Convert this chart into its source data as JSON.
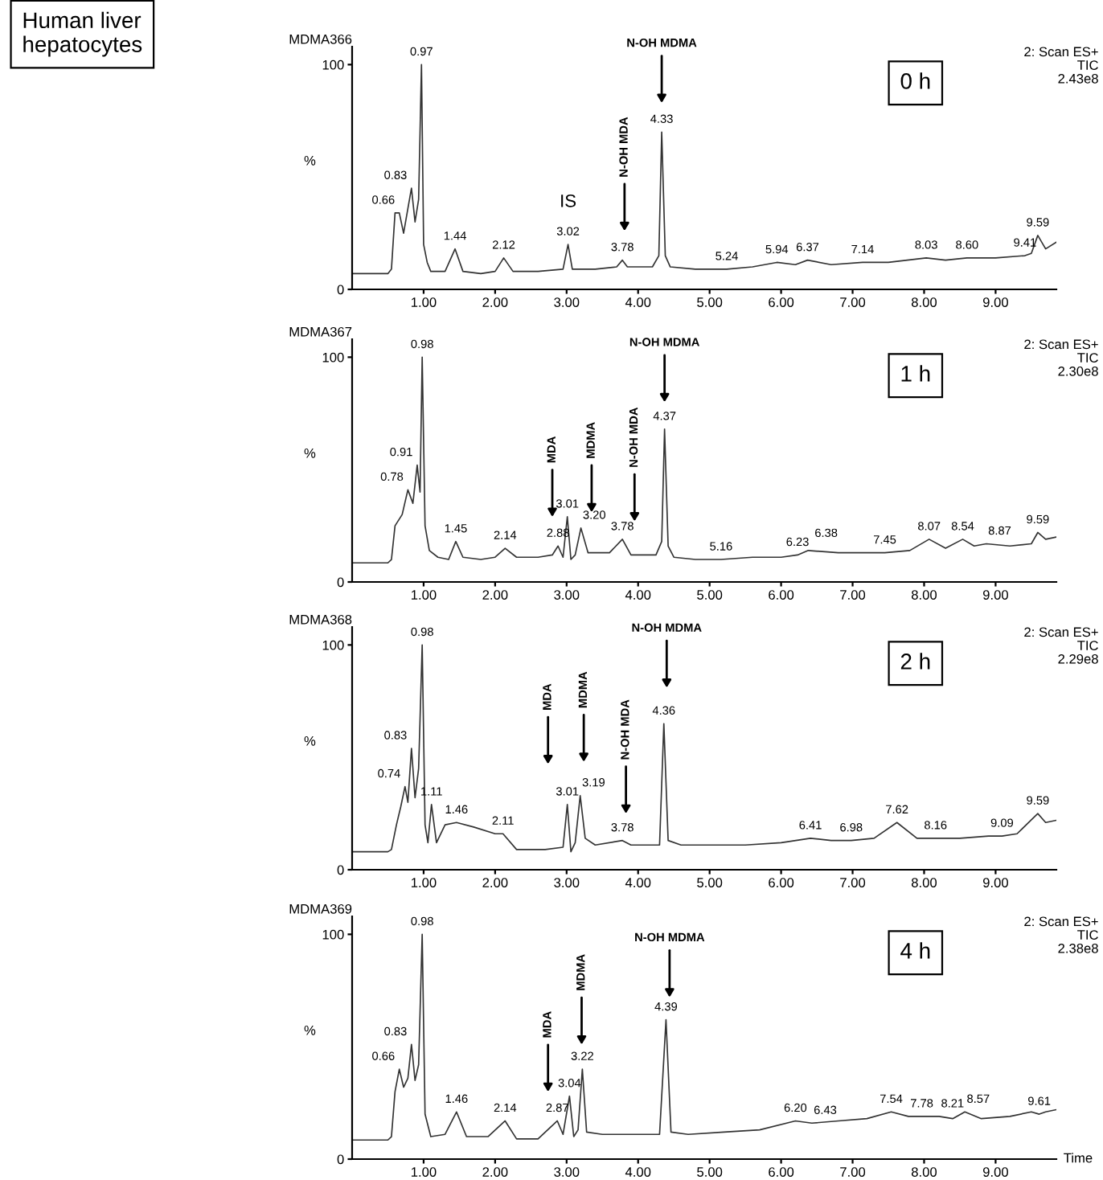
{
  "chart_data": [
    {
      "type": "line",
      "title": "MDMA366",
      "subtitle": "2: Scan ES+\nTIC\n2.43e8",
      "ylabel": "%",
      "color": "#333333",
      "xlim": [
        0,
        9.85
      ],
      "ylim": [
        0,
        108
      ],
      "yticks": [
        0,
        100
      ],
      "xticks": [
        {
          "value": 1,
          "label": "1.00"
        },
        {
          "value": 2,
          "label": "2.00"
        },
        {
          "value": 3,
          "label": "3.00"
        },
        {
          "value": 4,
          "label": "4.00"
        },
        {
          "value": 5,
          "label": "5.00"
        },
        {
          "value": 6,
          "label": "6.00"
        },
        {
          "value": 7,
          "label": "7.00"
        },
        {
          "value": 8,
          "label": "8.00"
        },
        {
          "value": 9,
          "label": "9.00"
        }
      ],
      "x": [
        0,
        0.5,
        0.55,
        0.6,
        0.66,
        0.72,
        0.78,
        0.83,
        0.88,
        0.93,
        0.97,
        1.0,
        1.05,
        1.1,
        1.3,
        1.44,
        1.55,
        1.8,
        2.0,
        2.12,
        2.25,
        2.6,
        2.95,
        3.02,
        3.08,
        3.4,
        3.7,
        3.78,
        3.85,
        4.2,
        4.29,
        4.33,
        4.38,
        4.45,
        4.8,
        5.24,
        5.6,
        5.94,
        6.2,
        6.37,
        6.7,
        7.14,
        7.5,
        8.03,
        8.3,
        8.6,
        9.0,
        9.41,
        9.5,
        9.59,
        9.7,
        9.85
      ],
      "values": [
        7,
        7,
        9,
        34,
        34,
        25,
        36,
        45,
        30,
        40,
        100,
        20,
        12,
        8,
        8,
        18,
        8,
        7,
        8,
        14,
        8,
        8,
        9,
        20,
        9,
        9,
        10,
        13,
        10,
        10,
        15,
        70,
        15,
        10,
        9,
        9,
        10,
        12,
        11,
        13,
        11,
        12,
        12,
        14,
        13,
        14,
        14,
        15,
        16,
        24,
        18,
        21
      ],
      "annotations": [
        "0 h",
        "Human liver\nhepatocytes",
        "IS",
        "N-OH MDA",
        "N-OH MDMA",
        {
          "text": "0.66",
          "x": 0.66,
          "y": 34
        },
        {
          "text": "0.83",
          "x": 0.83,
          "y": 45
        },
        {
          "text": "0.97",
          "x": 0.97,
          "y": 100
        },
        {
          "text": "1.44",
          "x": 1.44,
          "y": 18
        },
        {
          "text": "2.12",
          "x": 2.12,
          "y": 14
        },
        {
          "text": "3.02",
          "x": 3.02,
          "y": 20
        },
        {
          "text": "3.78",
          "x": 3.78,
          "y": 13
        },
        {
          "text": "4.33",
          "x": 4.33,
          "y": 70
        },
        {
          "text": "5.24",
          "x": 5.24,
          "y": 9
        },
        {
          "text": "5.94",
          "x": 5.94,
          "y": 12
        },
        {
          "text": "6.37",
          "x": 6.37,
          "y": 13
        },
        {
          "text": "7.14",
          "x": 7.14,
          "y": 12
        },
        {
          "text": "8.03",
          "x": 8.03,
          "y": 14
        },
        {
          "text": "8.60",
          "x": 8.6,
          "y": 14
        },
        {
          "text": "9.41",
          "x": 9.41,
          "y": 15
        },
        {
          "text": "9.59",
          "x": 9.59,
          "y": 24
        }
      ]
    },
    {
      "type": "line",
      "title": "MDMA367",
      "subtitle": "2: Scan ES+\nTIC\n2.30e8",
      "ylabel": "%",
      "color": "#333333",
      "xlim": [
        0,
        9.85
      ],
      "ylim": [
        0,
        108
      ],
      "yticks": [
        0,
        100
      ],
      "xticks": [
        {
          "value": 1,
          "label": "1.00"
        },
        {
          "value": 2,
          "label": "2.00"
        },
        {
          "value": 3,
          "label": "3.00"
        },
        {
          "value": 4,
          "label": "4.00"
        },
        {
          "value": 5,
          "label": "5.00"
        },
        {
          "value": 6,
          "label": "6.00"
        },
        {
          "value": 7,
          "label": "7.00"
        },
        {
          "value": 8,
          "label": "8.00"
        },
        {
          "value": 9,
          "label": "9.00"
        }
      ],
      "x": [
        0,
        0.5,
        0.55,
        0.6,
        0.7,
        0.78,
        0.85,
        0.91,
        0.95,
        0.98,
        1.02,
        1.08,
        1.2,
        1.35,
        1.45,
        1.55,
        1.8,
        2.0,
        2.14,
        2.3,
        2.6,
        2.8,
        2.88,
        2.95,
        3.01,
        3.06,
        3.12,
        3.2,
        3.3,
        3.6,
        3.78,
        3.9,
        4.25,
        4.33,
        4.37,
        4.42,
        4.5,
        4.8,
        5.16,
        5.6,
        6.0,
        6.23,
        6.38,
        6.8,
        7.2,
        7.45,
        7.8,
        8.07,
        8.3,
        8.54,
        8.7,
        8.87,
        9.2,
        9.5,
        9.59,
        9.7,
        9.85
      ],
      "values": [
        8.5,
        8.5,
        10,
        25,
        30,
        41,
        35,
        52,
        40,
        100,
        25,
        14,
        11,
        10,
        18,
        11,
        10,
        11,
        15,
        11,
        11,
        12,
        16,
        11,
        29,
        10,
        12,
        24,
        13,
        13,
        19,
        12,
        12,
        18,
        68,
        16,
        11,
        10,
        10,
        11,
        11,
        12,
        14,
        13,
        13,
        13,
        14,
        19,
        15,
        19,
        16,
        17,
        16,
        17,
        22,
        19,
        20
      ],
      "annotations": [
        "1 h",
        "MDA",
        "MDMA",
        "N-OH MDA",
        "N-OH MDMA",
        {
          "text": "0.78",
          "x": 0.78,
          "y": 41
        },
        {
          "text": "0.91",
          "x": 0.91,
          "y": 52
        },
        {
          "text": "0.98",
          "x": 0.98,
          "y": 100
        },
        {
          "text": "1.45",
          "x": 1.45,
          "y": 18
        },
        {
          "text": "2.14",
          "x": 2.14,
          "y": 15
        },
        {
          "text": "2.88",
          "x": 2.88,
          "y": 16
        },
        {
          "text": "3.01",
          "x": 3.01,
          "y": 29
        },
        {
          "text": "3.20",
          "x": 3.2,
          "y": 24
        },
        {
          "text": "3.78",
          "x": 3.78,
          "y": 19
        },
        {
          "text": "4.37",
          "x": 4.37,
          "y": 68
        },
        {
          "text": "5.16",
          "x": 5.16,
          "y": 10
        },
        {
          "text": "6.23",
          "x": 6.23,
          "y": 12
        },
        {
          "text": "6.38",
          "x": 6.38,
          "y": 14
        },
        {
          "text": "7.45",
          "x": 7.45,
          "y": 13
        },
        {
          "text": "8.07",
          "x": 8.07,
          "y": 19
        },
        {
          "text": "8.54",
          "x": 8.54,
          "y": 19
        },
        {
          "text": "8.87",
          "x": 8.87,
          "y": 17
        },
        {
          "text": "9.59",
          "x": 9.59,
          "y": 22
        }
      ]
    },
    {
      "type": "line",
      "title": "MDMA368",
      "subtitle": "2: Scan ES+\nTIC\n2.29e8",
      "ylabel": "%",
      "color": "#333333",
      "xlim": [
        0,
        9.85
      ],
      "ylim": [
        0,
        108
      ],
      "yticks": [
        0,
        100
      ],
      "xticks": [
        {
          "value": 1,
          "label": "1.00"
        },
        {
          "value": 2,
          "label": "2.00"
        },
        {
          "value": 3,
          "label": "3.00"
        },
        {
          "value": 4,
          "label": "4.00"
        },
        {
          "value": 5,
          "label": "5.00"
        },
        {
          "value": 6,
          "label": "6.00"
        },
        {
          "value": 7,
          "label": "7.00"
        },
        {
          "value": 8,
          "label": "8.00"
        },
        {
          "value": 9,
          "label": "9.00"
        }
      ],
      "x": [
        0,
        0.5,
        0.55,
        0.62,
        0.68,
        0.74,
        0.78,
        0.83,
        0.88,
        0.93,
        0.98,
        1.02,
        1.06,
        1.11,
        1.18,
        1.3,
        1.46,
        1.7,
        2.0,
        2.11,
        2.3,
        2.7,
        2.95,
        3.01,
        3.06,
        3.12,
        3.19,
        3.26,
        3.4,
        3.78,
        3.9,
        4.3,
        4.36,
        4.42,
        4.6,
        5.0,
        5.5,
        6.0,
        6.41,
        6.7,
        6.98,
        7.3,
        7.62,
        7.9,
        8.16,
        8.5,
        8.9,
        9.09,
        9.3,
        9.59,
        9.7,
        9.85
      ],
      "values": [
        8,
        8,
        9,
        20,
        28,
        37,
        30,
        54,
        32,
        45,
        100,
        20,
        12,
        29,
        12,
        20,
        21,
        19,
        16,
        16,
        9,
        9,
        10,
        29,
        8,
        12,
        33,
        14,
        11,
        13,
        11,
        11,
        65,
        13,
        11,
        11,
        11,
        12,
        14,
        13,
        13,
        14,
        21,
        14,
        14,
        14,
        15,
        15,
        16,
        25,
        21,
        22
      ],
      "annotations": [
        "2 h",
        "MDA",
        "MDMA",
        "N-OH MDA",
        "N-OH MDMA",
        {
          "text": "0.74",
          "x": 0.74,
          "y": 37
        },
        {
          "text": "0.83",
          "x": 0.83,
          "y": 54
        },
        {
          "text": "0.98",
          "x": 0.98,
          "y": 100
        },
        {
          "text": "1.11",
          "x": 1.11,
          "y": 29
        },
        {
          "text": "1.46",
          "x": 1.46,
          "y": 21
        },
        {
          "text": "2.11",
          "x": 2.11,
          "y": 16
        },
        {
          "text": "3.01",
          "x": 3.01,
          "y": 29
        },
        {
          "text": "3.19",
          "x": 3.19,
          "y": 33
        },
        {
          "text": "3.78",
          "x": 3.78,
          "y": 13
        },
        {
          "text": "4.36",
          "x": 4.36,
          "y": 65
        },
        {
          "text": "6.41",
          "x": 6.41,
          "y": 14
        },
        {
          "text": "6.98",
          "x": 6.98,
          "y": 13
        },
        {
          "text": "7.62",
          "x": 7.62,
          "y": 21
        },
        {
          "text": "8.16",
          "x": 8.16,
          "y": 14
        },
        {
          "text": "9.09",
          "x": 9.09,
          "y": 15
        },
        {
          "text": "9.59",
          "x": 9.59,
          "y": 25
        }
      ]
    },
    {
      "type": "line",
      "title": "MDMA369",
      "subtitle": "2: Scan ES+\nTIC\n2.38e8",
      "ylabel": "%",
      "xlabel": "Time",
      "color": "#333333",
      "xlim": [
        0,
        9.85
      ],
      "ylim": [
        0,
        108
      ],
      "yticks": [
        0,
        100
      ],
      "xticks": [
        {
          "value": 1,
          "label": "1.00"
        },
        {
          "value": 2,
          "label": "2.00"
        },
        {
          "value": 3,
          "label": "3.00"
        },
        {
          "value": 4,
          "label": "4.00"
        },
        {
          "value": 5,
          "label": "5.00"
        },
        {
          "value": 6,
          "label": "6.00"
        },
        {
          "value": 7,
          "label": "7.00"
        },
        {
          "value": 8,
          "label": "8.00"
        },
        {
          "value": 9,
          "label": "9.00"
        }
      ],
      "x": [
        0,
        0.5,
        0.55,
        0.6,
        0.66,
        0.72,
        0.78,
        0.83,
        0.88,
        0.93,
        0.98,
        1.02,
        1.1,
        1.3,
        1.46,
        1.6,
        1.9,
        2.14,
        2.3,
        2.6,
        2.87,
        2.95,
        3.04,
        3.1,
        3.16,
        3.22,
        3.28,
        3.5,
        4.0,
        4.3,
        4.39,
        4.46,
        4.7,
        5.2,
        5.7,
        6.2,
        6.43,
        6.8,
        7.2,
        7.54,
        7.78,
        8.0,
        8.21,
        8.4,
        8.57,
        8.8,
        9.2,
        9.5,
        9.61,
        9.7,
        9.85
      ],
      "values": [
        8.5,
        8.5,
        10,
        30,
        40,
        32,
        36,
        51,
        35,
        42,
        100,
        20,
        10,
        11,
        21,
        10,
        10,
        17,
        9,
        9,
        17,
        11,
        28,
        10,
        13,
        40,
        12,
        11,
        11,
        11,
        62,
        12,
        11,
        12,
        13,
        17,
        16,
        17,
        18,
        21,
        19,
        19,
        19,
        18,
        21,
        18,
        19,
        21,
        20,
        21,
        22
      ],
      "annotations": [
        "4 h",
        "MDA",
        "MDMA",
        "N-OH MDMA",
        {
          "text": "0.66",
          "x": 0.66,
          "y": 40
        },
        {
          "text": "0.83",
          "x": 0.83,
          "y": 51
        },
        {
          "text": "0.98",
          "x": 0.98,
          "y": 100
        },
        {
          "text": "1.46",
          "x": 1.46,
          "y": 21
        },
        {
          "text": "2.14",
          "x": 2.14,
          "y": 17
        },
        {
          "text": "2.87",
          "x": 2.87,
          "y": 17
        },
        {
          "text": "3.04",
          "x": 3.04,
          "y": 28
        },
        {
          "text": "3.22",
          "x": 3.22,
          "y": 40
        },
        {
          "text": "4.39",
          "x": 4.39,
          "y": 62
        },
        {
          "text": "6.20",
          "x": 6.2,
          "y": 17
        },
        {
          "text": "6.43",
          "x": 6.43,
          "y": 16
        },
        {
          "text": "7.54",
          "x": 7.54,
          "y": 21
        },
        {
          "text": "7.78",
          "x": 7.78,
          "y": 19
        },
        {
          "text": "8.21",
          "x": 8.21,
          "y": 19
        },
        {
          "text": "8.57",
          "x": 8.57,
          "y": 21
        },
        {
          "text": "9.61",
          "x": 9.61,
          "y": 20
        }
      ]
    }
  ]
}
